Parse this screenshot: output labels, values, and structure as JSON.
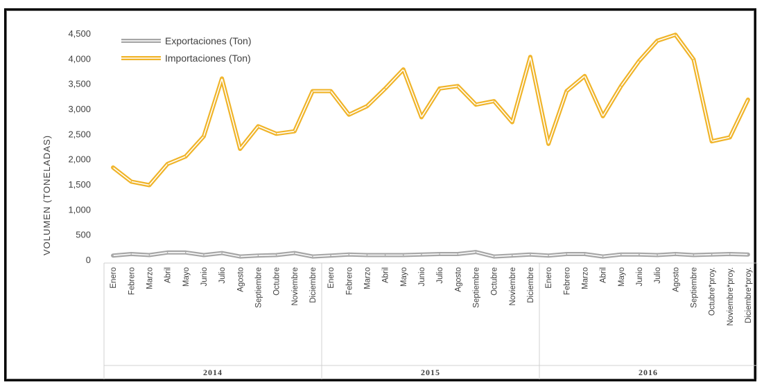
{
  "chart_data": {
    "type": "line",
    "ylabel": "VOLUMEN (TONELADAS)",
    "ylim": [
      0,
      4500
    ],
    "yticks": [
      "0",
      "500",
      "1,000",
      "1,500",
      "2,000",
      "2,500",
      "3,000",
      "3,500",
      "4,000",
      "4,500"
    ],
    "grid": false,
    "legend": "top-left",
    "categories": [
      "Enero",
      "Febrero",
      "Marzo",
      "Abril",
      "Mayo",
      "Junio",
      "Julio",
      "Agosto",
      "Septiembre",
      "Octubre",
      "Noviembre",
      "Diciembre",
      "Enero",
      "Febrero",
      "Marzo",
      "Abril",
      "Mayo",
      "Junio",
      "Julio",
      "Agosto",
      "Septiembre",
      "Octubre",
      "Noviembre",
      "Diciembre",
      "Enero",
      "Febrero",
      "Marzo",
      "Abril",
      "Mayo",
      "Junio",
      "Julio",
      "Agosto",
      "Septiembre",
      "Octubre*proy.",
      "Noviembre*proy.",
      "Diciembre*proy."
    ],
    "groups": [
      {
        "label": "2014",
        "count": 12
      },
      {
        "label": "2015",
        "count": 12
      },
      {
        "label": "2016",
        "count": 12
      }
    ],
    "series": [
      {
        "name": "Exportaciones (Ton)",
        "color": "#a6a6a6",
        "values": [
          80,
          110,
          90,
          140,
          140,
          90,
          130,
          60,
          80,
          90,
          130,
          60,
          80,
          100,
          90,
          90,
          90,
          100,
          110,
          110,
          150,
          60,
          80,
          100,
          80,
          110,
          110,
          60,
          100,
          100,
          90,
          110,
          90,
          100,
          110,
          100
        ]
      },
      {
        "name": "Importaciones (Ton)",
        "color": "#f0b429",
        "values": [
          1830,
          1550,
          1480,
          1900,
          2050,
          2450,
          3600,
          2200,
          2650,
          2500,
          2550,
          3350,
          3350,
          2880,
          3050,
          3400,
          3780,
          2830,
          3400,
          3450,
          3080,
          3150,
          2730,
          4030,
          2300,
          3350,
          3650,
          2850,
          3450,
          3950,
          4350,
          4470,
          3980,
          2350,
          2430,
          3180
        ]
      }
    ]
  }
}
